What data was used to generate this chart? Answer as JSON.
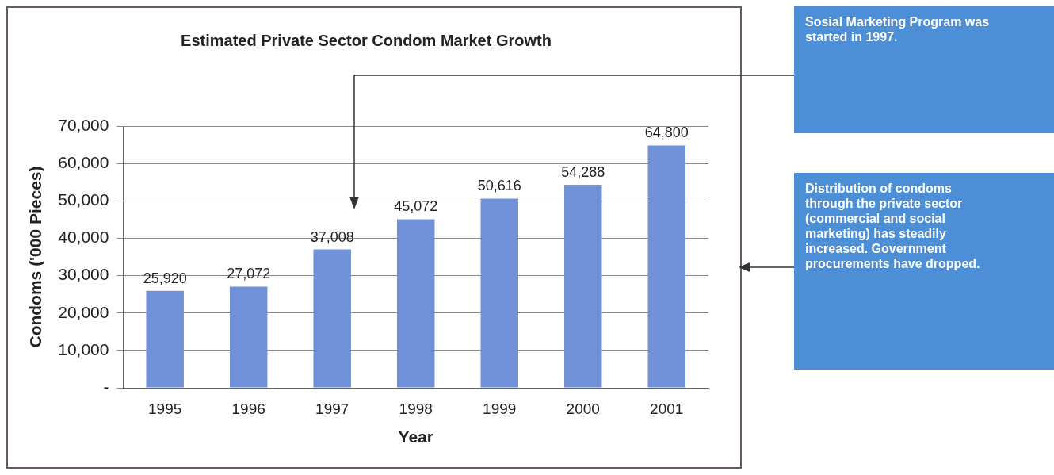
{
  "chart_data": {
    "type": "bar",
    "title": "Estimated Private Sector Condom Market Growth",
    "xlabel": "Year",
    "ylabel": "Condoms ('000 Pieces)",
    "categories": [
      "1995",
      "1996",
      "1997",
      "1998",
      "1999",
      "2000",
      "2001"
    ],
    "values": [
      25920,
      27072,
      37008,
      45072,
      50616,
      54288,
      64800
    ],
    "color": "#7090d8",
    "ylim": [
      0,
      70000
    ],
    "yticks": [
      {
        "value": 0,
        "label": "-"
      },
      {
        "value": 10000,
        "label": "10,000"
      },
      {
        "value": 20000,
        "label": "20,000"
      },
      {
        "value": 30000,
        "label": "30,000"
      },
      {
        "value": 40000,
        "label": "40,000"
      },
      {
        "value": 50000,
        "label": "50,000"
      },
      {
        "value": 60000,
        "label": "60,000"
      },
      {
        "value": 70000,
        "label": "70,000"
      }
    ],
    "value_labels": [
      "25,920",
      "27,072",
      "37,008",
      "45,072",
      "50,616",
      "54,288",
      "64,800"
    ],
    "grid": "y",
    "legend": false,
    "annotations": [
      "Sosial Marketing Program was started in 1997.",
      "Distribution of condoms through the private sector (commercial and social marketing) has steadily increased. Government procurements have dropped."
    ]
  }
}
